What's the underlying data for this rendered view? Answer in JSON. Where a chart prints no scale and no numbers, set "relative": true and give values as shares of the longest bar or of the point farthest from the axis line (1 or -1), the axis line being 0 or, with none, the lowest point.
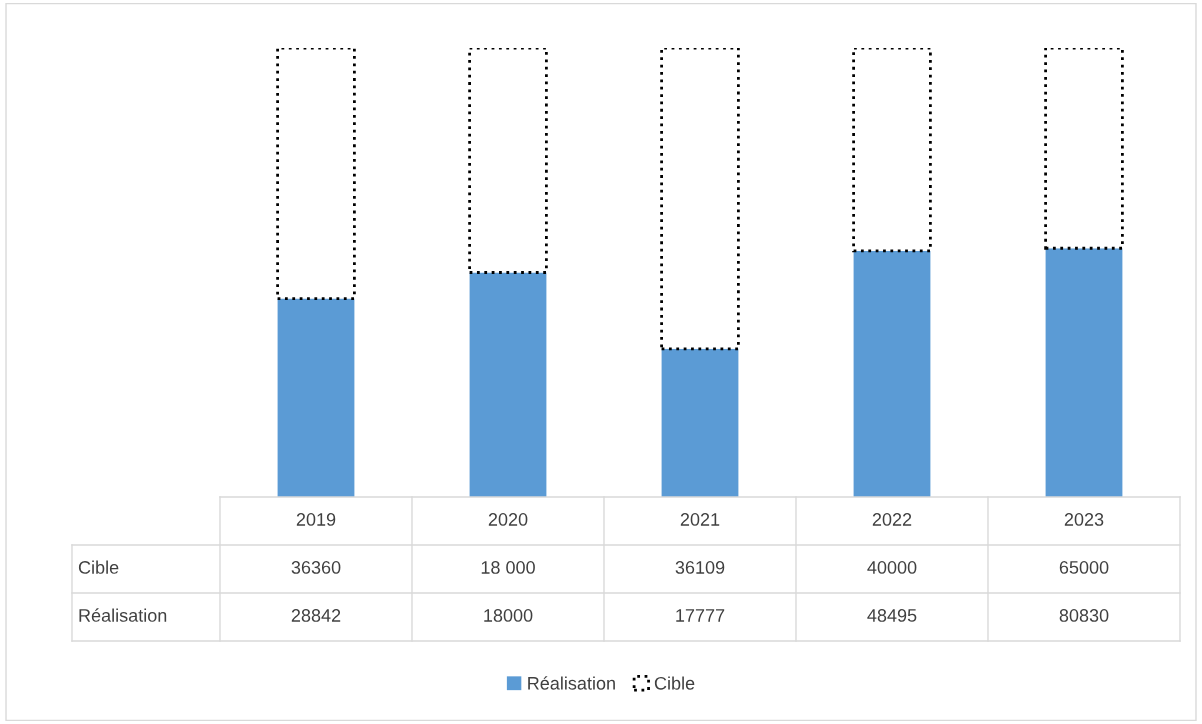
{
  "chart_data": {
    "type": "bar",
    "stacked": true,
    "relative": true,
    "legend": "bottom",
    "categories": [
      "2019",
      "2020",
      "2021",
      "2022",
      "2023"
    ],
    "series": [
      {
        "name": "Réalisation",
        "color": "#5b9bd5",
        "values": [
          0.442,
          0.5,
          0.33,
          0.548,
          0.554
        ]
      },
      {
        "name": "Cible",
        "color": "#ffffff",
        "line_style": "dotted",
        "values": [
          0.558,
          0.5,
          0.67,
          0.452,
          0.446
        ]
      }
    ],
    "annotations": [
      "36360",
      "18 000",
      "36109",
      "40000",
      "65000",
      "28842",
      "18000",
      "17777",
      "48495",
      "80830"
    ]
  }
}
